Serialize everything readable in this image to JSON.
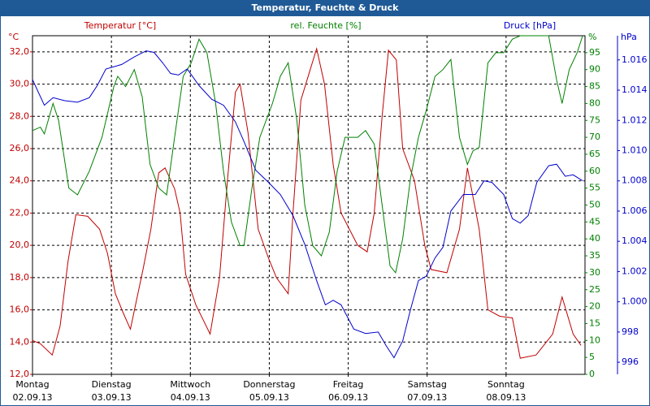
{
  "chart_data": {
    "type": "line",
    "title": "Temperatur, Feuchte & Druck",
    "y_unit": "°C",
    "y2_unit": "%",
    "y3_unit": "hPa",
    "xlim": [
      0,
      7
    ],
    "xticks": [
      0,
      1,
      2,
      3,
      4,
      5,
      6
    ],
    "xtick_days": [
      "Montag",
      "Dienstag",
      "Mittwoch",
      "Donnerstag",
      "Freitag",
      "Samstag",
      "Sonntag"
    ],
    "xtick_dates": [
      "02.09.13",
      "03.09.13",
      "04.09.13",
      "05.09.13",
      "06.09.13",
      "07.09.13",
      "08.09.13"
    ],
    "ylim": [
      12,
      33
    ],
    "yticks": [
      {
        "value": 12,
        "label": "12,0"
      },
      {
        "value": 14,
        "label": "14,0"
      },
      {
        "value": 16,
        "label": "16,0"
      },
      {
        "value": 18,
        "label": "18,0"
      },
      {
        "value": 20,
        "label": "20,0"
      },
      {
        "value": 22,
        "label": "22,0"
      },
      {
        "value": 24,
        "label": "24,0"
      },
      {
        "value": 26,
        "label": "26,0"
      },
      {
        "value": 28,
        "label": "28,0"
      },
      {
        "value": 30,
        "label": "30,0"
      },
      {
        "value": 32,
        "label": "32,0"
      }
    ],
    "y2lim": [
      0,
      100
    ],
    "y2ticks": [
      0,
      5,
      10,
      15,
      20,
      25,
      30,
      35,
      40,
      45,
      50,
      55,
      60,
      65,
      70,
      75,
      80,
      85,
      90,
      95
    ],
    "y3lim": [
      995.2,
      1017.6
    ],
    "y3ticks": [
      996,
      998,
      {
        "value": 1000,
        "label": "1.000"
      },
      {
        "value": 1002,
        "label": "1.002"
      },
      {
        "value": 1004,
        "label": "1.004"
      },
      {
        "value": 1006,
        "label": "1.006"
      },
      {
        "value": 1008,
        "label": "1.008"
      },
      {
        "value": 1010,
        "label": "1.010"
      },
      {
        "value": 1012,
        "label": "1.012"
      },
      {
        "value": 1014,
        "label": "1.014"
      },
      {
        "value": 1016,
        "label": "1.016"
      }
    ],
    "grid": true,
    "series": [
      {
        "name": "Temperatur [°C]",
        "color": "#c00000",
        "axis": "y",
        "x": [
          0,
          0.1,
          0.25,
          0.35,
          0.45,
          0.55,
          0.7,
          0.85,
          0.95,
          1.05,
          1.15,
          1.24,
          1.4,
          1.5,
          1.6,
          1.68,
          1.8,
          1.87,
          1.94,
          2.07,
          2.25,
          2.37,
          2.47,
          2.57,
          2.63,
          2.73,
          2.86,
          2.99,
          3.09,
          3.24,
          3.3,
          3.4,
          3.6,
          3.7,
          3.81,
          3.91,
          4.12,
          4.24,
          4.33,
          4.43,
          4.51,
          4.61,
          4.69,
          4.84,
          4.97,
          5.05,
          5.25,
          5.41,
          5.51,
          5.66,
          5.77,
          5.92,
          6.08,
          6.18,
          6.38,
          6.59,
          6.71,
          6.85,
          6.95
        ],
        "values": [
          14.1,
          13.9,
          13.2,
          15,
          19,
          21.9,
          21.8,
          21.0,
          19.5,
          17,
          15.8,
          14.8,
          18.5,
          21,
          24.5,
          24.8,
          23.5,
          22,
          18.2,
          16.3,
          14.5,
          18,
          24,
          29.5,
          30,
          27,
          21,
          19.2,
          18,
          17,
          22,
          29,
          32.2,
          30,
          25,
          22,
          20,
          19.6,
          22,
          28,
          32.1,
          31.5,
          26,
          24,
          20,
          18.5,
          18.3,
          21,
          24.8,
          21,
          16,
          15.6,
          15.5,
          13,
          13.2,
          14.5,
          16.8,
          14.5,
          13.8
        ]
      },
      {
        "name": "rel. Feuchte [%]",
        "color": "#008000",
        "axis": "y2",
        "x": [
          0,
          0.1,
          0.15,
          0.26,
          0.33,
          0.46,
          0.57,
          0.72,
          0.88,
          1.03,
          1.08,
          1.18,
          1.29,
          1.39,
          1.49,
          1.6,
          1.7,
          1.8,
          1.91,
          2.01,
          2.11,
          2.21,
          2.32,
          2.42,
          2.52,
          2.63,
          2.68,
          2.78,
          2.88,
          3.04,
          3.14,
          3.24,
          3.35,
          3.45,
          3.55,
          3.66,
          3.76,
          3.86,
          3.96,
          4.12,
          4.22,
          4.33,
          4.43,
          4.53,
          4.6,
          4.69,
          4.79,
          4.89,
          4.99,
          5.1,
          5.2,
          5.3,
          5.41,
          5.51,
          5.58,
          5.66,
          5.77,
          5.87,
          5.97,
          6.08,
          6.18,
          6.39,
          6.54,
          6.64,
          6.71,
          6.8,
          6.9,
          6.97
        ],
        "values": [
          72,
          73,
          71,
          80,
          75,
          55,
          53,
          60,
          70,
          85,
          88,
          85,
          90,
          82,
          62,
          55,
          53,
          70,
          88,
          92,
          99,
          95,
          80,
          60,
          45,
          38,
          38,
          55,
          70,
          80,
          88,
          92,
          75,
          50,
          38,
          35,
          42,
          60,
          70,
          70,
          72,
          68,
          50,
          32,
          30,
          40,
          58,
          70,
          78,
          88,
          90,
          93,
          70,
          62,
          66,
          67,
          92,
          95,
          95,
          99,
          100,
          100,
          100,
          87,
          80,
          90,
          95,
          100
        ]
      },
      {
        "name": "Druck [hPa]",
        "color": "#0000cc",
        "axis": "y3",
        "x": [
          0,
          0.15,
          0.26,
          0.41,
          0.57,
          0.72,
          0.82,
          0.93,
          1.13,
          1.29,
          1.44,
          1.54,
          1.65,
          1.75,
          1.85,
          1.96,
          2.11,
          2.27,
          2.42,
          2.57,
          2.68,
          2.83,
          2.99,
          3.14,
          3.3,
          3.45,
          3.6,
          3.71,
          3.81,
          3.91,
          4.07,
          4.22,
          4.38,
          4.48,
          4.58,
          4.69,
          4.79,
          4.89,
          4.99,
          5.1,
          5.2,
          5.3,
          5.46,
          5.61,
          5.72,
          5.82,
          5.97,
          6.08,
          6.18,
          6.28,
          6.39,
          6.54,
          6.64,
          6.75,
          6.85,
          6.97
        ],
        "values": [
          1014.7,
          1013.0,
          1013.5,
          1013.3,
          1013.2,
          1013.5,
          1014.3,
          1015.4,
          1015.7,
          1016.2,
          1016.6,
          1016.5,
          1015.8,
          1015.1,
          1015.0,
          1015.4,
          1014.3,
          1013.4,
          1013.0,
          1011.9,
          1010.6,
          1008.7,
          1007.9,
          1007.1,
          1005.7,
          1003.8,
          1001.4,
          999.8,
          1000.1,
          999.8,
          998.2,
          997.9,
          998.0,
          997.1,
          996.3,
          997.4,
          999.5,
          1001.4,
          1001.7,
          1002.9,
          1003.6,
          1006.0,
          1007.1,
          1007.1,
          1008.0,
          1007.9,
          1007.1,
          1005.5,
          1005.2,
          1005.7,
          1007.9,
          1009.0,
          1009.1,
          1008.3,
          1008.4,
          1008.0
        ]
      }
    ]
  }
}
